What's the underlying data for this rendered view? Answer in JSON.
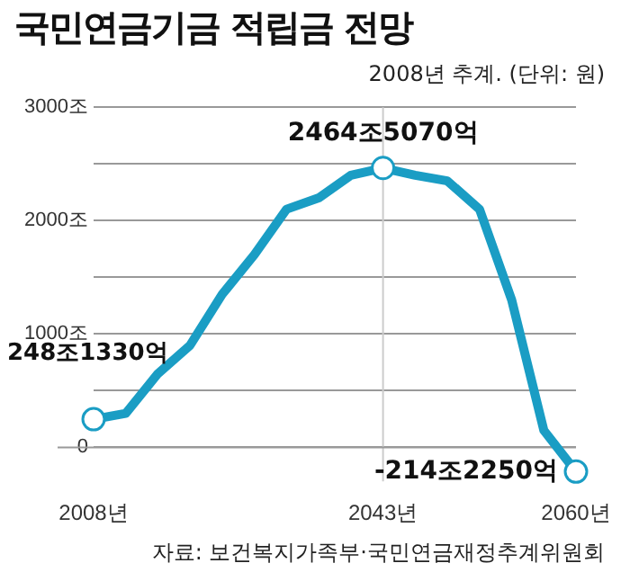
{
  "chart_data": {
    "type": "line",
    "title": "국민연금기금 적립금 전망",
    "subtitle": "2008년 추계. (단위: 원)",
    "categories": [
      "2008년",
      null,
      null,
      null,
      null,
      null,
      null,
      null,
      null,
      "2043년",
      null,
      null,
      null,
      null,
      null,
      "2060년"
    ],
    "series": [
      {
        "color": "#1a9dc4",
        "values": [
          248,
          300,
          650,
          900,
          1350,
          1700,
          2100,
          2200,
          2400,
          2464,
          2400,
          2350,
          2100,
          1300,
          150,
          -214
        ]
      }
    ],
    "ylim": [
      -300,
      3000
    ],
    "yticks": [
      {
        "value": 0,
        "label": "0"
      },
      {
        "value": 500,
        "label": null
      },
      {
        "value": 1000,
        "label": "1000조"
      },
      {
        "value": 1500,
        "label": null
      },
      {
        "value": 2000,
        "label": "2000조"
      },
      {
        "value": 2500,
        "label": null
      },
      {
        "value": 3000,
        "label": "3000조"
      }
    ],
    "grid": "y",
    "legend": false,
    "ref_lines": [
      {
        "axis": "x",
        "value": "2043년",
        "color": "#cccccc"
      }
    ],
    "annotations": [
      {
        "text": "248조1330억",
        "x": "2008년",
        "y": 248
      },
      {
        "text": "2464조5070억",
        "x": "2043년",
        "y": 2464
      },
      {
        "text": "-214조2250억",
        "x": "2060년",
        "y": -214
      },
      "자료: 보건복지가족부·국민연금재정추계위원회"
    ]
  }
}
